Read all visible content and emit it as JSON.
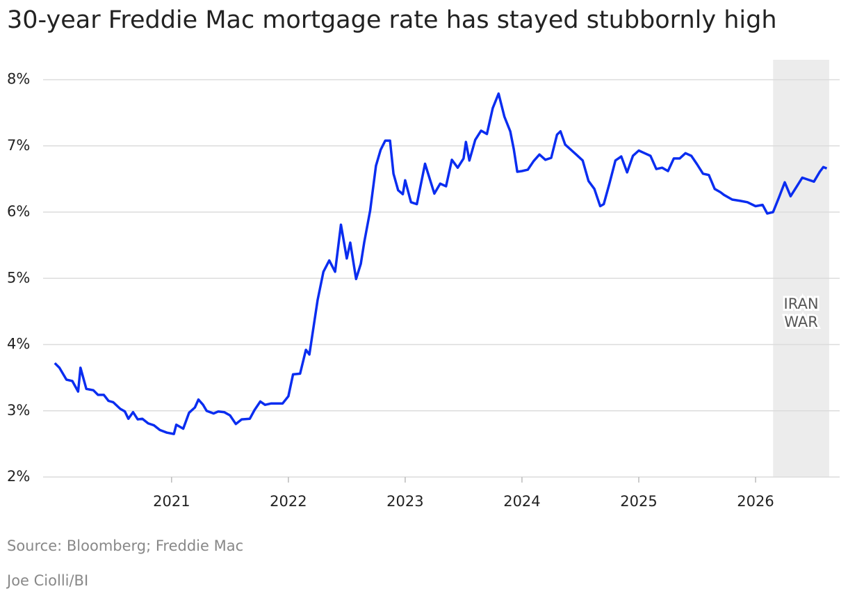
{
  "chart_data": {
    "type": "line",
    "title": "30-year Freddie Mac mortgage rate has stayed stubbornly high",
    "source": "Source: Bloomberg; Freddie Mac",
    "credit": "Joe Ciolli/BI",
    "color": "#0a2df0",
    "grid": true,
    "xlim": [
      2019.9,
      2026.72
    ],
    "ylim": [
      2,
      8.3
    ],
    "xticks": [
      2021,
      2022,
      2023,
      2024,
      2025,
      2026
    ],
    "yticks": [
      {
        "value": 2,
        "label": "2%"
      },
      {
        "value": 3,
        "label": "3%"
      },
      {
        "value": 4,
        "label": "4%"
      },
      {
        "value": 5,
        "label": "5%"
      },
      {
        "value": 6,
        "label": "6%"
      },
      {
        "value": 7,
        "label": "7%"
      },
      {
        "value": 8,
        "label": "8%"
      }
    ],
    "shade": {
      "x0": 2026.15,
      "x1": 2026.63,
      "label": [
        "IRAN",
        "WAR"
      ]
    },
    "x": [
      2020.0,
      2020.04,
      2020.1,
      2020.15,
      2020.2,
      2020.22,
      2020.27,
      2020.33,
      2020.37,
      2020.42,
      2020.46,
      2020.5,
      2020.56,
      2020.6,
      2020.63,
      2020.67,
      2020.71,
      2020.75,
      2020.8,
      2020.85,
      2020.9,
      2020.96,
      2021.02,
      2021.04,
      2021.1,
      2021.15,
      2021.2,
      2021.23,
      2021.27,
      2021.3,
      2021.36,
      2021.4,
      2021.45,
      2021.5,
      2021.55,
      2021.6,
      2021.67,
      2021.71,
      2021.76,
      2021.8,
      2021.85,
      2021.95,
      2022.0,
      2022.04,
      2022.1,
      2022.15,
      2022.18,
      2022.25,
      2022.3,
      2022.35,
      2022.4,
      2022.45,
      2022.5,
      2022.53,
      2022.58,
      2022.62,
      2022.65,
      2022.7,
      2022.75,
      2022.79,
      2022.83,
      2022.87,
      2022.9,
      2022.94,
      2022.98,
      2023.0,
      2023.05,
      2023.1,
      2023.17,
      2023.25,
      2023.3,
      2023.35,
      2023.4,
      2023.45,
      2023.5,
      2023.52,
      2023.55,
      2023.6,
      2023.65,
      2023.7,
      2023.75,
      2023.8,
      2023.85,
      2023.9,
      2023.93,
      2023.96,
      2024.0,
      2024.05,
      2024.1,
      2024.15,
      2024.2,
      2024.25,
      2024.3,
      2024.33,
      2024.37,
      2024.42,
      2024.47,
      2024.52,
      2024.57,
      2024.62,
      2024.67,
      2024.7,
      2024.75,
      2024.8,
      2024.85,
      2024.9,
      2024.95,
      2025.0,
      2025.05,
      2025.1,
      2025.15,
      2025.2,
      2025.25,
      2025.3,
      2025.35,
      2025.4,
      2025.45,
      2025.5,
      2025.55,
      2025.6,
      2025.65,
      2025.7,
      2025.73,
      2025.8,
      2025.87,
      2025.93,
      2026.0,
      2026.06,
      2026.1,
      2026.15,
      2026.2,
      2026.25,
      2026.3,
      2026.35,
      2026.4,
      2026.45,
      2026.5,
      2026.55,
      2026.58,
      2026.61
    ],
    "values": [
      3.72,
      3.65,
      3.47,
      3.45,
      3.29,
      3.65,
      3.33,
      3.31,
      3.24,
      3.24,
      3.15,
      3.13,
      3.03,
      2.99,
      2.88,
      2.98,
      2.87,
      2.88,
      2.81,
      2.78,
      2.71,
      2.67,
      2.65,
      2.79,
      2.73,
      2.97,
      3.05,
      3.17,
      3.09,
      3.0,
      2.96,
      2.99,
      2.98,
      2.93,
      2.8,
      2.87,
      2.88,
      3.01,
      3.14,
      3.09,
      3.11,
      3.11,
      3.22,
      3.55,
      3.56,
      3.92,
      3.85,
      4.67,
      5.1,
      5.27,
      5.1,
      5.81,
      5.3,
      5.54,
      4.99,
      5.22,
      5.55,
      6.02,
      6.7,
      6.94,
      7.08,
      7.08,
      6.58,
      6.33,
      6.27,
      6.48,
      6.15,
      6.12,
      6.73,
      6.28,
      6.43,
      6.39,
      6.79,
      6.67,
      6.81,
      7.06,
      6.78,
      7.09,
      7.23,
      7.18,
      7.57,
      7.79,
      7.44,
      7.22,
      6.95,
      6.61,
      6.62,
      6.64,
      6.77,
      6.87,
      6.79,
      6.82,
      7.17,
      7.22,
      7.02,
      6.94,
      6.86,
      6.78,
      6.47,
      6.35,
      6.09,
      6.12,
      6.44,
      6.78,
      6.84,
      6.6,
      6.85,
      6.93,
      6.89,
      6.85,
      6.65,
      6.67,
      6.62,
      6.81,
      6.81,
      6.89,
      6.85,
      6.72,
      6.58,
      6.56,
      6.35,
      6.3,
      6.26,
      6.19,
      6.17,
      6.15,
      6.09,
      6.11,
      5.98,
      6.0,
      6.22,
      6.45,
      6.24,
      6.38,
      6.52,
      6.49,
      6.46,
      6.61,
      6.68,
      6.66
    ]
  }
}
